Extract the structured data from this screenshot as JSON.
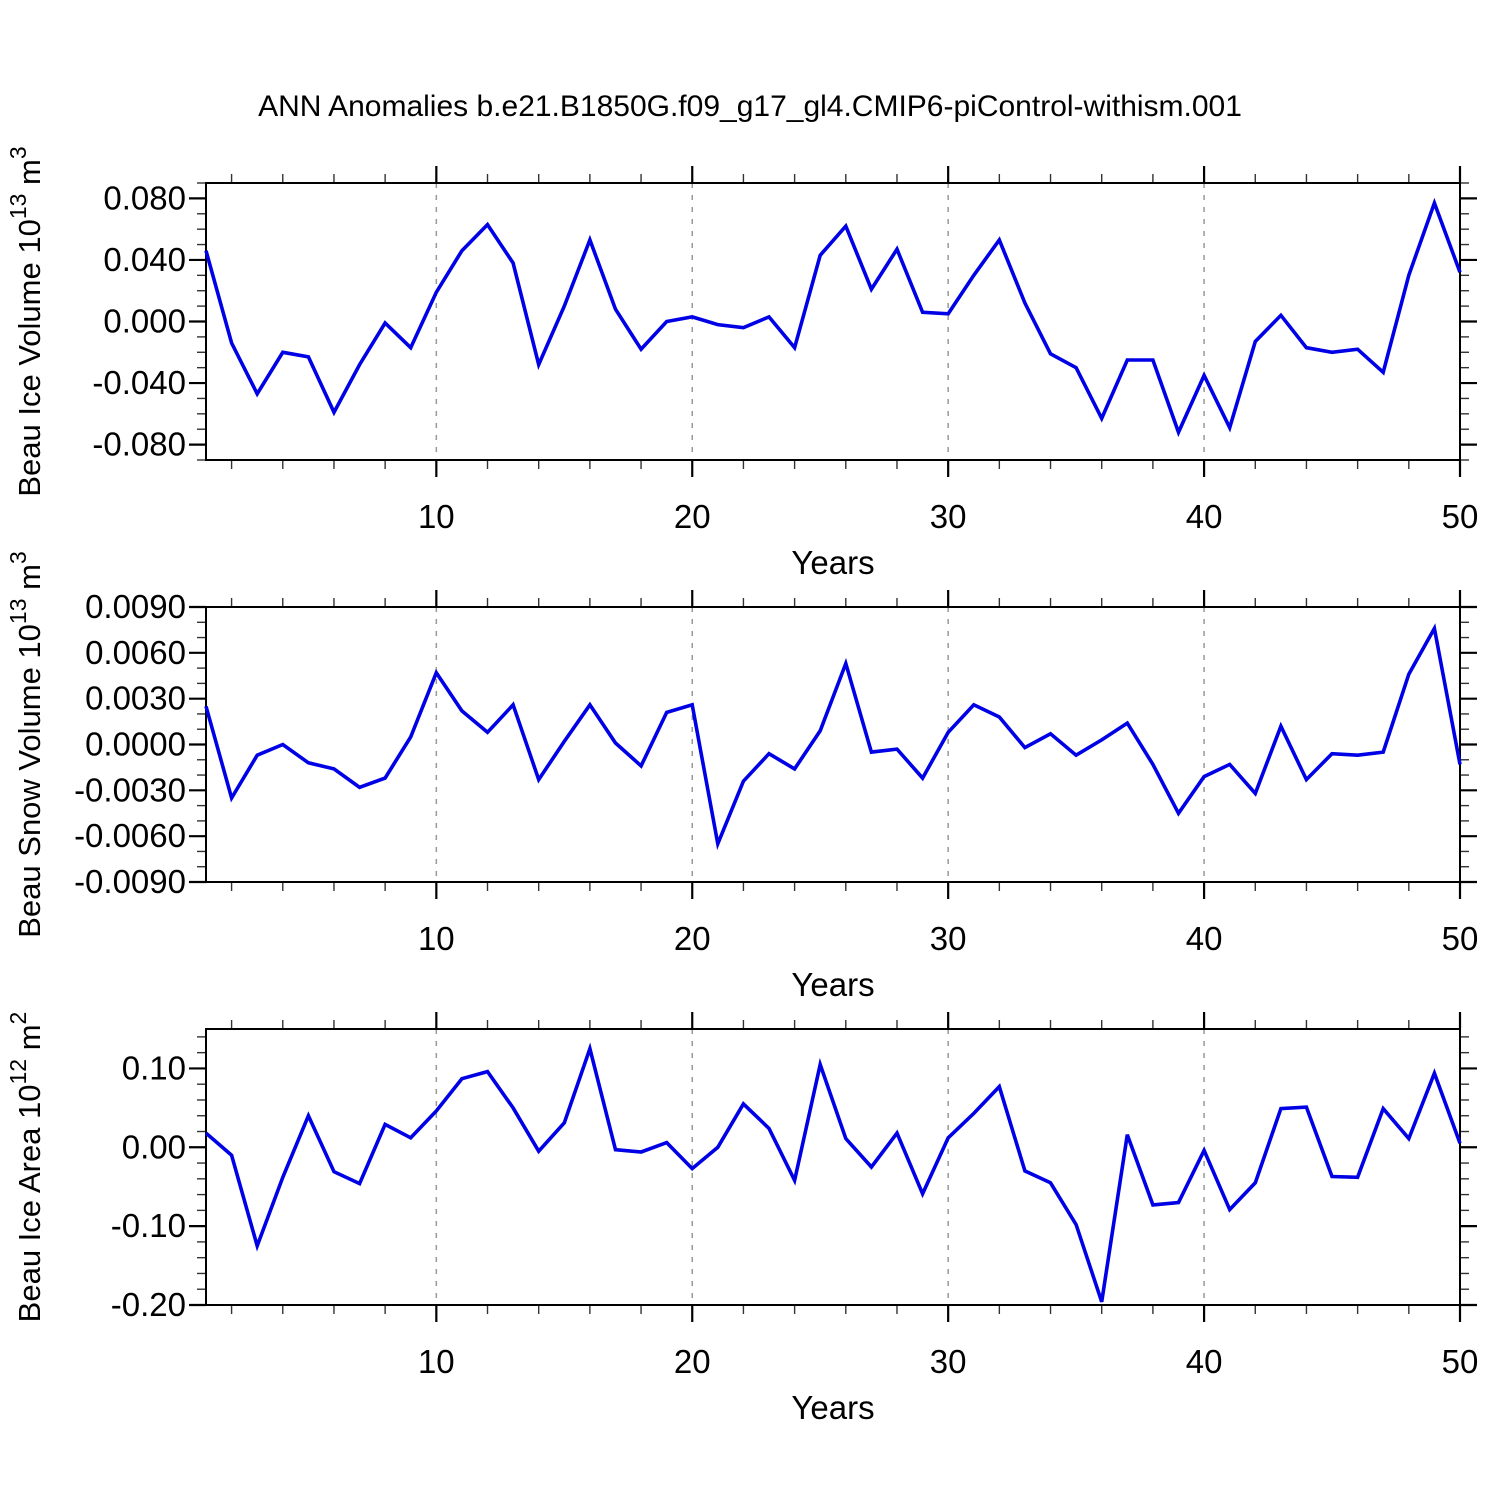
{
  "title": "ANN Anomalies b.e21.B1850G.f09_g17_gl4.CMIP6-piControl-withism.001",
  "colors": {
    "background": "#ffffff",
    "frame": "#000000",
    "gridline": "#999999",
    "tick_major": "#000000",
    "tick_minor": "#333333",
    "text": "#000000",
    "line": "#0000e6"
  },
  "chart_data": [
    {
      "type": "line",
      "name": "beau-ice-volume",
      "xlabel": "Years",
      "ylabel_parts": {
        "prefix": "Beau Ice Volume 10",
        "prefix_exp": "13",
        "suffix": " m",
        "suffix_exp": "3"
      },
      "x_range": [
        1,
        50
      ],
      "x_step": 1,
      "ylim": [
        -0.09,
        0.09
      ],
      "x_major_ticks": [
        10,
        20,
        30,
        40,
        50
      ],
      "x_minor_step": 2,
      "gridlines_x": [
        10,
        20,
        30,
        40
      ],
      "y_major_ticks": [
        {
          "v": 0.08,
          "label": "0.080"
        },
        {
          "v": 0.04,
          "label": "0.040"
        },
        {
          "v": 0.0,
          "label": "0.000"
        },
        {
          "v": -0.04,
          "label": "-0.040"
        },
        {
          "v": -0.08,
          "label": "-0.080"
        }
      ],
      "y_minor_step": 0.01,
      "grid": "x-dashed",
      "legend": "none",
      "line_color": "#0000e6",
      "values": [
        0.046,
        -0.014,
        -0.047,
        -0.02,
        -0.023,
        -0.059,
        -0.028,
        -0.001,
        -0.017,
        0.019,
        0.046,
        0.063,
        0.038,
        -0.028,
        0.01,
        0.053,
        0.008,
        -0.018,
        0.0,
        0.003,
        -0.002,
        -0.004,
        0.003,
        -0.017,
        0.043,
        0.062,
        0.021,
        0.047,
        0.006,
        0.005,
        0.03,
        0.053,
        0.012,
        -0.021,
        -0.03,
        -0.063,
        -0.025,
        -0.025,
        -0.072,
        -0.035,
        -0.069,
        -0.013,
        0.004,
        -0.017,
        -0.02,
        -0.018,
        -0.033,
        0.03,
        0.077,
        0.032
      ]
    },
    {
      "type": "line",
      "name": "beau-snow-volume",
      "xlabel": "Years",
      "ylabel_parts": {
        "prefix": "Beau Snow Volume 10",
        "prefix_exp": "13",
        "suffix": " m",
        "suffix_exp": "3"
      },
      "x_range": [
        1,
        50
      ],
      "x_step": 1,
      "ylim": [
        -0.009,
        0.009
      ],
      "x_major_ticks": [
        10,
        20,
        30,
        40,
        50
      ],
      "x_minor_step": 2,
      "gridlines_x": [
        10,
        20,
        30,
        40
      ],
      "y_major_ticks": [
        {
          "v": 0.009,
          "label": "0.0090"
        },
        {
          "v": 0.006,
          "label": "0.0060"
        },
        {
          "v": 0.003,
          "label": "0.0030"
        },
        {
          "v": 0.0,
          "label": "0.0000"
        },
        {
          "v": -0.003,
          "label": "-0.0030"
        },
        {
          "v": -0.006,
          "label": "-0.0060"
        },
        {
          "v": -0.009,
          "label": "-0.0090"
        }
      ],
      "y_minor_step": 0.001,
      "grid": "x-dashed",
      "legend": "none",
      "line_color": "#0000e6",
      "values": [
        0.0025,
        -0.0035,
        -0.0007,
        0.0,
        -0.0012,
        -0.0016,
        -0.0028,
        -0.0022,
        0.0005,
        0.0047,
        0.0022,
        0.0008,
        0.0026,
        -0.0023,
        0.0002,
        0.0026,
        0.0001,
        -0.0014,
        0.0021,
        0.0026,
        -0.0065,
        -0.0024,
        -0.0006,
        -0.0016,
        0.0009,
        0.0053,
        -0.0005,
        -0.0003,
        -0.0022,
        0.0008,
        0.0026,
        0.0018,
        -0.0002,
        0.0007,
        -0.0007,
        0.0003,
        0.0014,
        -0.0013,
        -0.0045,
        -0.0021,
        -0.0013,
        -0.0032,
        0.0012,
        -0.0023,
        -0.0006,
        -0.0007,
        -0.0005,
        0.0046,
        0.0076,
        -0.0013
      ]
    },
    {
      "type": "line",
      "name": "beau-ice-area",
      "xlabel": "Years",
      "ylabel_parts": {
        "prefix": "Beau Ice Area 10",
        "prefix_exp": "12",
        "suffix": " m",
        "suffix_exp": "2"
      },
      "x_range": [
        1,
        50
      ],
      "x_step": 1,
      "ylim": [
        -0.2,
        0.15
      ],
      "x_major_ticks": [
        10,
        20,
        30,
        40,
        50
      ],
      "x_minor_step": 2,
      "gridlines_x": [
        10,
        20,
        30,
        40
      ],
      "y_major_ticks": [
        {
          "v": 0.1,
          "label": "0.10"
        },
        {
          "v": 0.0,
          "label": "0.00"
        },
        {
          "v": -0.1,
          "label": "-0.10"
        },
        {
          "v": -0.2,
          "label": "-0.20"
        }
      ],
      "y_minor_step": 0.02,
      "grid": "x-dashed",
      "legend": "none",
      "line_color": "#0000e6",
      "values": [
        0.018,
        -0.01,
        -0.125,
        -0.038,
        0.04,
        -0.031,
        -0.046,
        0.029,
        0.012,
        0.046,
        0.087,
        0.096,
        0.05,
        -0.005,
        0.031,
        0.125,
        -0.003,
        -0.006,
        0.006,
        -0.027,
        0.0,
        0.055,
        0.024,
        -0.042,
        0.105,
        0.011,
        -0.025,
        0.018,
        -0.059,
        0.012,
        0.043,
        0.077,
        -0.03,
        -0.045,
        -0.098,
        -0.196,
        0.016,
        -0.073,
        -0.07,
        -0.004,
        -0.079,
        -0.045,
        0.049,
        0.051,
        -0.037,
        -0.038,
        0.049,
        0.011,
        0.094,
        0.005
      ]
    }
  ]
}
